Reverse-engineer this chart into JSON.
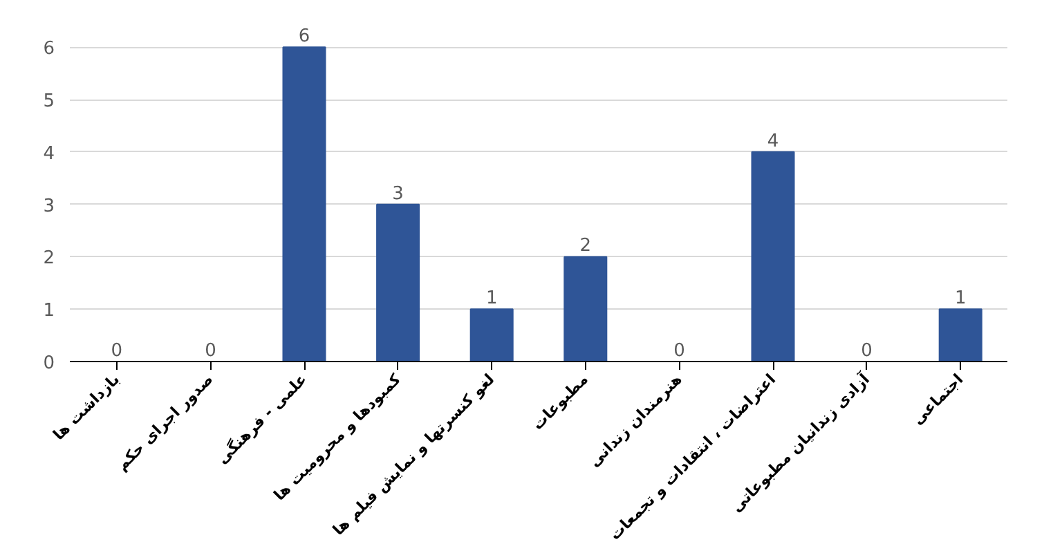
{
  "chart_data": {
    "type": "bar",
    "categories": [
      "بازداشت ها",
      "صدور اجرای حکم",
      "علمی - فرهنگی",
      "کمبودها و محرومیت ها",
      "لغو کنسرتها و نمایش فیلم ها",
      "مطبوعات",
      "هنرمندان زندانی",
      "اعتراضات ، انتقادات و تجمعات",
      "آزادی زندانیان مطبوعاتی",
      "اجتماعی"
    ],
    "values": [
      0,
      0,
      6,
      3,
      1,
      2,
      0,
      4,
      0,
      1
    ],
    "color": "#2f5597",
    "ylim": [
      0,
      6
    ],
    "yticks": [
      0,
      1,
      2,
      3,
      4,
      5,
      6
    ],
    "grid": "y",
    "data_labels": true
  }
}
